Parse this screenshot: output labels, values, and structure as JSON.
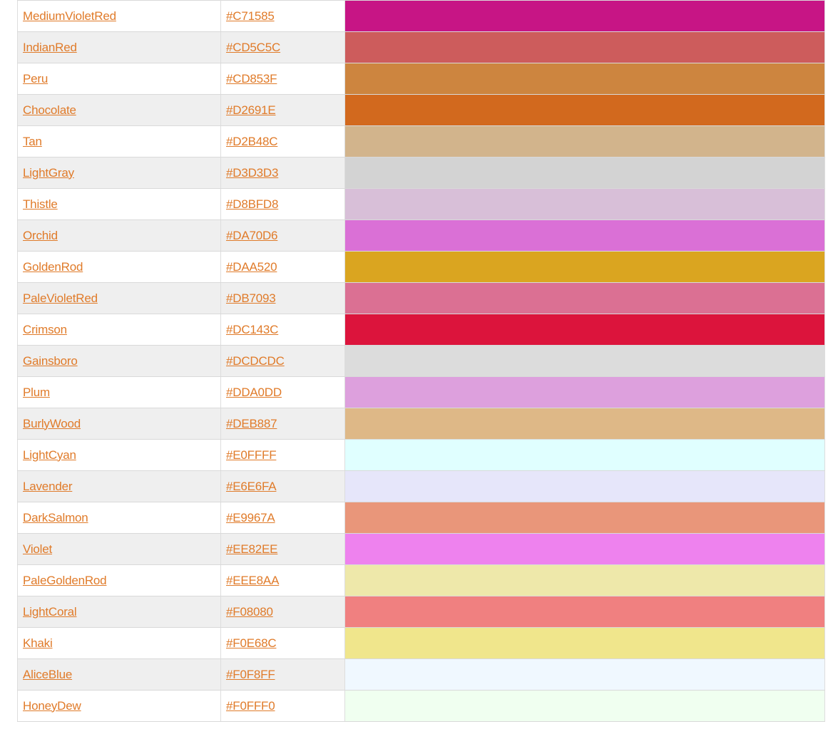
{
  "colors": [
    {
      "name": "MediumVioletRed",
      "hex": "#C71585"
    },
    {
      "name": "IndianRed ",
      "hex": "#CD5C5C"
    },
    {
      "name": "Peru",
      "hex": "#CD853F"
    },
    {
      "name": "Chocolate",
      "hex": "#D2691E"
    },
    {
      "name": "Tan",
      "hex": "#D2B48C"
    },
    {
      "name": "LightGray",
      "hex": "#D3D3D3"
    },
    {
      "name": "Thistle",
      "hex": "#D8BFD8"
    },
    {
      "name": "Orchid",
      "hex": "#DA70D6"
    },
    {
      "name": "GoldenRod",
      "hex": "#DAA520"
    },
    {
      "name": "PaleVioletRed",
      "hex": "#DB7093"
    },
    {
      "name": "Crimson",
      "hex": "#DC143C"
    },
    {
      "name": "Gainsboro",
      "hex": "#DCDCDC"
    },
    {
      "name": "Plum",
      "hex": "#DDA0DD"
    },
    {
      "name": "BurlyWood",
      "hex": "#DEB887"
    },
    {
      "name": "LightCyan",
      "hex": "#E0FFFF"
    },
    {
      "name": "Lavender",
      "hex": "#E6E6FA"
    },
    {
      "name": "DarkSalmon",
      "hex": "#E9967A"
    },
    {
      "name": "Violet",
      "hex": "#EE82EE"
    },
    {
      "name": "PaleGoldenRod",
      "hex": "#EEE8AA"
    },
    {
      "name": "LightCoral",
      "hex": "#F08080"
    },
    {
      "name": "Khaki",
      "hex": "#F0E68C"
    },
    {
      "name": "AliceBlue",
      "hex": "#F0F8FF"
    },
    {
      "name": "HoneyDew",
      "hex": "#F0FFF0"
    }
  ],
  "theme": {
    "link_color": "#E07B2A",
    "stripe_color": "#EFEFEF"
  }
}
